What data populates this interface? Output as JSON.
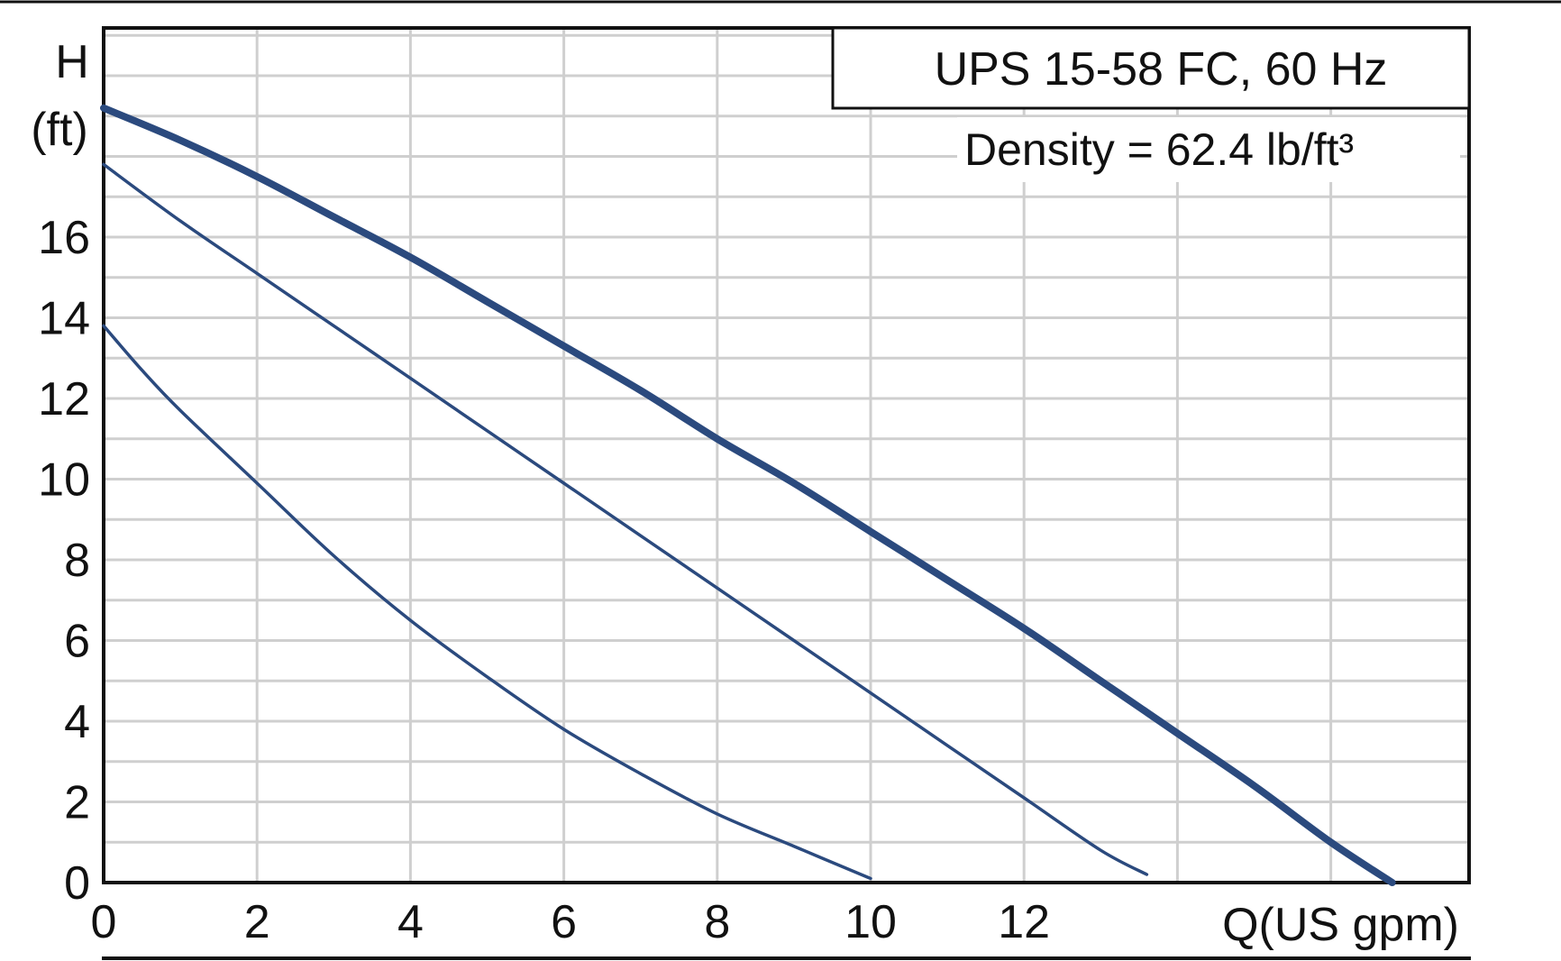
{
  "chart_data": {
    "type": "line",
    "title": "UPS 15-58 FC, 60 Hz",
    "subtitle": "Density = 62.4 lb/ft³",
    "ylabel_top": "H",
    "ylabel_unit": "(ft)",
    "xlabel": "Q(US gpm)",
    "xlim": [
      0,
      17.9
    ],
    "ylim": [
      0,
      21.4
    ],
    "x_ticks": [
      0,
      2,
      4,
      6,
      8,
      10,
      12
    ],
    "y_ticks": [
      0,
      2,
      4,
      6,
      8,
      10,
      12,
      14,
      16
    ],
    "grid": true,
    "series": [
      {
        "color": "#2b4a7e",
        "emphasis": "thick",
        "x": [
          0,
          1,
          2,
          3,
          4,
          5,
          6,
          7,
          8,
          9,
          10,
          11,
          12,
          13,
          14,
          15,
          16,
          16.8
        ],
        "y": [
          19.2,
          18.4,
          17.5,
          16.5,
          15.5,
          14.4,
          13.3,
          12.2,
          11.0,
          9.9,
          8.7,
          7.5,
          6.3,
          5.0,
          3.7,
          2.4,
          1.0,
          0
        ]
      },
      {
        "color": "#2b4a7e",
        "emphasis": "medium",
        "x": [
          0,
          1,
          2,
          3,
          4,
          5,
          6,
          7,
          8,
          9,
          10,
          11,
          12,
          13,
          13.6
        ],
        "y": [
          17.8,
          16.4,
          15.1,
          13.8,
          12.5,
          11.2,
          9.9,
          8.6,
          7.3,
          6.0,
          4.7,
          3.4,
          2.1,
          0.8,
          0.2
        ]
      },
      {
        "color": "#2b4a7e",
        "emphasis": "medium",
        "x": [
          0,
          0.5,
          1,
          2,
          3,
          4,
          5,
          6,
          7,
          8,
          9,
          10
        ],
        "y": [
          13.8,
          12.7,
          11.7,
          9.9,
          8.1,
          6.5,
          5.1,
          3.8,
          2.7,
          1.7,
          0.9,
          0.1
        ]
      }
    ]
  }
}
